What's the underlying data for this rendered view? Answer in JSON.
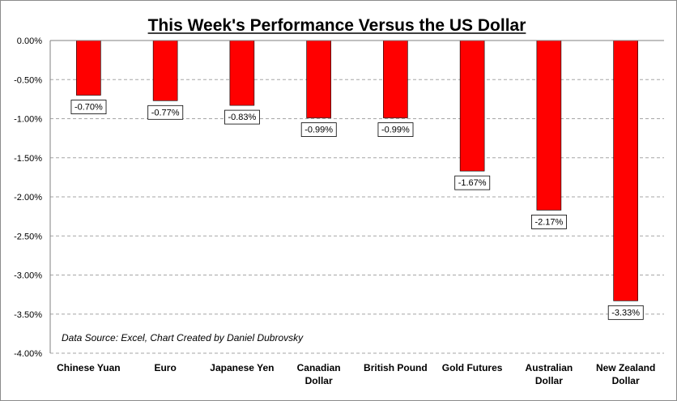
{
  "chart_data": {
    "type": "bar",
    "title": "This Week's Performance Versus the US Dollar",
    "annotation": "Data Source: Excel, Chart Created by Daniel Dubrovsky",
    "categories": [
      "Chinese Yuan",
      "Euro",
      "Japanese Yen",
      "Canadian Dollar",
      "British Pound",
      "Gold Futures",
      "Australian Dollar",
      "New Zealand Dollar"
    ],
    "category_lines": [
      [
        "Chinese Yuan"
      ],
      [
        "Euro"
      ],
      [
        "Japanese Yen"
      ],
      [
        "Canadian",
        "Dollar"
      ],
      [
        "British Pound"
      ],
      [
        "Gold Futures"
      ],
      [
        "Australian",
        "Dollar"
      ],
      [
        "New Zealand",
        "Dollar"
      ]
    ],
    "values": [
      -0.7,
      -0.77,
      -0.83,
      -0.99,
      -0.99,
      -1.67,
      -2.17,
      -3.33
    ],
    "data_labels": [
      "-0.70%",
      "-0.77%",
      "-0.83%",
      "-0.99%",
      "-0.99%",
      "-1.67%",
      "-2.17%",
      "-3.33%"
    ],
    "yticks": [
      0,
      -0.5,
      -1.0,
      -1.5,
      -2.0,
      -2.5,
      -3.0,
      -3.5,
      -4.0
    ],
    "ytick_labels": [
      "0.00%",
      "-0.50%",
      "-1.00%",
      "-1.50%",
      "-2.00%",
      "-2.50%",
      "-3.00%",
      "-3.50%",
      "-4.00%"
    ],
    "ylim": [
      -4.0,
      0
    ],
    "grid": true,
    "legend": "none",
    "bar_color": "#ff0000"
  }
}
